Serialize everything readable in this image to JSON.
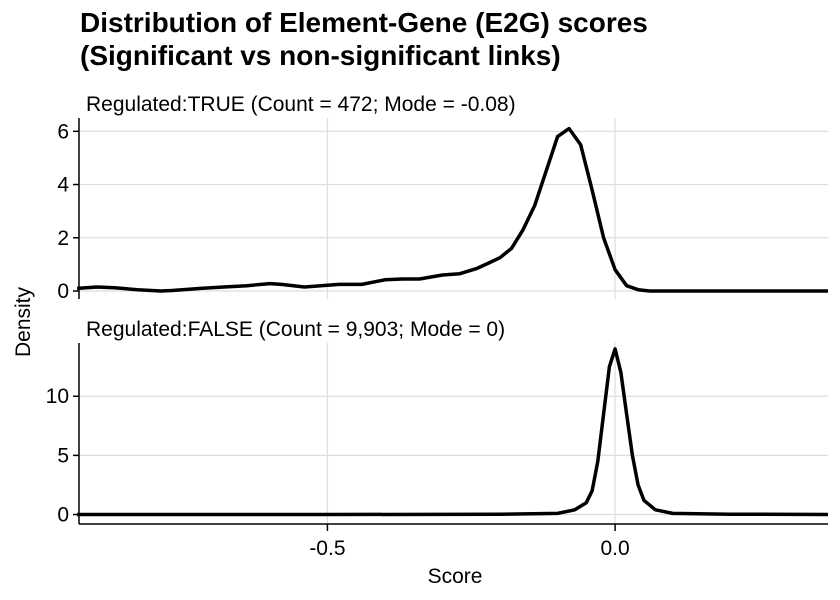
{
  "chart_data": {
    "type": "area",
    "title": [
      "Distribution of Element-Gene (E2G) scores",
      "(Significant vs non-significant links)"
    ],
    "xlabel": "Score",
    "ylabel": "Density",
    "xlim": [
      -0.93,
      0.37
    ],
    "xticks": [
      -0.5,
      0.0
    ],
    "xtick_labels": [
      "-0.5",
      "0.0"
    ],
    "grid": true,
    "line_color": "#000000",
    "grid_color": "#dddddd",
    "panels": [
      {
        "strip_label": "Regulated:TRUE (Count = 472; Mode = -0.08)",
        "ylim": [
          -0.3,
          6.5
        ],
        "yticks": [
          0,
          2,
          4,
          6
        ],
        "ytick_labels": [
          "0",
          "2",
          "4",
          "6"
        ],
        "x": [
          -0.935,
          -0.9,
          -0.87,
          -0.83,
          -0.79,
          -0.77,
          -0.72,
          -0.68,
          -0.64,
          -0.6,
          -0.58,
          -0.54,
          -0.5,
          -0.48,
          -0.44,
          -0.4,
          -0.37,
          -0.34,
          -0.3,
          -0.27,
          -0.24,
          -0.22,
          -0.2,
          -0.18,
          -0.16,
          -0.14,
          -0.12,
          -0.1,
          -0.08,
          -0.06,
          -0.04,
          -0.02,
          0.0,
          0.02,
          0.04,
          0.06,
          0.1,
          0.2,
          0.3,
          0.37
        ],
        "y": [
          0.1,
          0.15,
          0.12,
          0.05,
          0.0,
          0.02,
          0.1,
          0.15,
          0.2,
          0.28,
          0.25,
          0.15,
          0.22,
          0.25,
          0.25,
          0.42,
          0.45,
          0.45,
          0.6,
          0.65,
          0.85,
          1.05,
          1.25,
          1.6,
          2.3,
          3.2,
          4.5,
          5.8,
          6.1,
          5.5,
          3.8,
          2.0,
          0.8,
          0.2,
          0.05,
          0.0,
          0.0,
          0.0,
          0.0,
          0.0
        ]
      },
      {
        "strip_label": "Regulated:FALSE (Count = 9,903; Mode = 0)",
        "ylim": [
          -0.8,
          14.5
        ],
        "yticks": [
          0,
          5,
          10
        ],
        "ytick_labels": [
          "0",
          "5",
          "10"
        ],
        "x": [
          -0.935,
          -0.5,
          -0.2,
          -0.1,
          -0.07,
          -0.05,
          -0.04,
          -0.03,
          -0.02,
          -0.01,
          0.0,
          0.01,
          0.02,
          0.03,
          0.04,
          0.05,
          0.07,
          0.1,
          0.2,
          0.37
        ],
        "y": [
          0.0,
          0.0,
          0.02,
          0.1,
          0.4,
          1.0,
          2.0,
          4.5,
          8.5,
          12.5,
          14.0,
          12.0,
          8.5,
          5.0,
          2.5,
          1.2,
          0.4,
          0.1,
          0.03,
          0.0
        ]
      }
    ]
  }
}
